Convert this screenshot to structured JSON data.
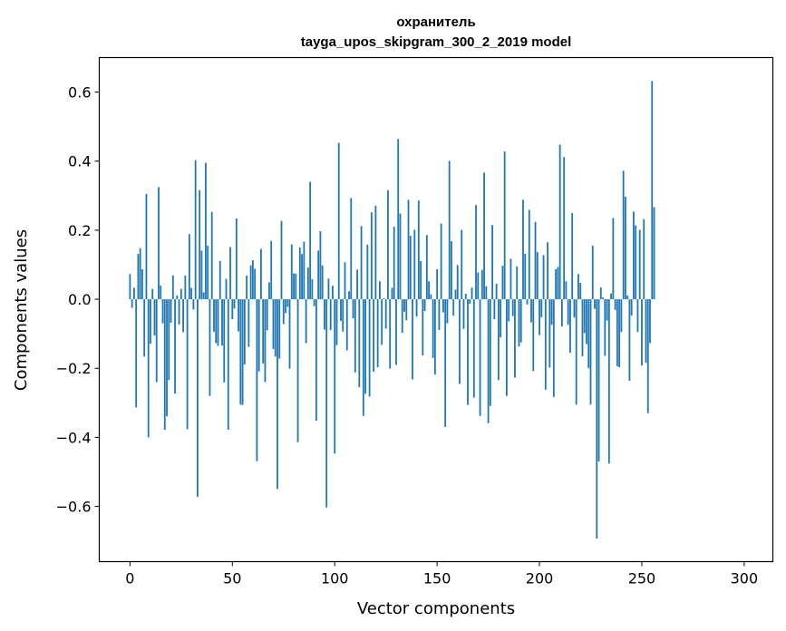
{
  "chart_data": {
    "type": "bar",
    "title_line1": "охранитель",
    "title_line2": "tayga_upos_skipgram_300_2_2019 model",
    "xlabel": "Vector components",
    "ylabel": "Components values",
    "xlim": [
      -15,
      314
    ],
    "ylim": [
      -0.76,
      0.7
    ],
    "xticks": [
      0,
      50,
      100,
      150,
      200,
      250,
      300
    ],
    "xtick_labels": [
      "0",
      "50",
      "100",
      "150",
      "200",
      "250",
      "300"
    ],
    "yticks": [
      -0.6,
      -0.4,
      -0.2,
      0.0,
      0.2,
      0.4,
      0.6
    ],
    "ytick_labels": [
      "−0.6",
      "−0.4",
      "−0.2",
      "0.0",
      "0.2",
      "0.4",
      "0.6"
    ],
    "bar_color": "#1f77b4",
    "values": [
      0.073,
      -0.025,
      0.033,
      -0.313,
      0.131,
      0.148,
      0.087,
      -0.166,
      0.305,
      -0.4,
      -0.129,
      0.03,
      -0.105,
      -0.24,
      0.325,
      0.04,
      -0.07,
      -0.378,
      -0.339,
      -0.234,
      -0.068,
      0.069,
      -0.273,
      0.011,
      -0.073,
      0.03,
      -0.095,
      0.069,
      -0.376,
      0.189,
      0.033,
      -0.03,
      0.403,
      -0.572,
      0.316,
      0.141,
      0.02,
      0.395,
      0.155,
      -0.28,
      0.253,
      -0.094,
      -0.127,
      -0.135,
      0.111,
      -0.134,
      -0.241,
      0.059,
      -0.378,
      0.151,
      -0.058,
      -0.027,
      0.234,
      -0.093,
      -0.305,
      -0.306,
      -0.189,
      0.069,
      -0.138,
      0.098,
      0.113,
      0.088,
      -0.469,
      -0.209,
      0.146,
      -0.186,
      -0.24,
      -0.09,
      0.049,
      0.169,
      -0.144,
      -0.166,
      -0.55,
      -0.172,
      0.227,
      -0.072,
      -0.04,
      -0.022,
      -0.201,
      0.159,
      0.075,
      0.074,
      -0.414,
      0.15,
      0.131,
      0.167,
      -0.127,
      0.092,
      0.34,
      0.058,
      -0.02,
      -0.352,
      0.141,
      0.197,
      0.098,
      -0.088,
      -0.603,
      0.06,
      -0.089,
      0.039,
      -0.447,
      -0.133,
      0.453,
      -0.063,
      -0.094,
      0.107,
      -0.148,
      0.023,
      0.293,
      -0.055,
      -0.212,
      0.086,
      -0.255,
      0.212,
      -0.338,
      -0.274,
      0.158,
      -0.282,
      0.252,
      -0.21,
      0.271,
      -0.197,
      0.052,
      -0.132,
      0.003,
      -0.085,
      0.316,
      -0.201,
      0.033,
      0.21,
      -0.19,
      0.464,
      0.248,
      -0.097,
      -0.036,
      -0.061,
      0.288,
      0.184,
      -0.232,
      0.201,
      -0.05,
      0.286,
      0.111,
      -0.163,
      -0.034,
      0.186,
      0.052,
      0.014,
      -0.17,
      -0.218,
      0.087,
      -0.089,
      0.219,
      -0.038,
      -0.37,
      -0.07,
      0.401,
      0.168,
      -0.048,
      0.028,
      0.099,
      -0.245,
      0.201,
      -0.086,
      0.016,
      -0.306,
      -0.013,
      0.034,
      -0.285,
      0.273,
      0.078,
      -0.338,
      0.085,
      0.367,
      0.038,
      -0.359,
      -0.309,
      0.215,
      -0.058,
      0.045,
      -0.234,
      -0.11,
      0.097,
      0.428,
      -0.28,
      -0.064,
      0.117,
      -0.049,
      -0.227,
      0.095,
      -0.137,
      -0.125,
      0.288,
      0.132,
      -0.015,
      0.259,
      -0.067,
      -0.208,
      0.224,
      0.137,
      -0.104,
      -0.052,
      0.128,
      -0.262,
      0.165,
      -0.198,
      -0.074,
      -0.283,
      0.087,
      0.093,
      0.448,
      -0.079,
      0.412,
      0.052,
      -0.074,
      -0.155,
      0.25,
      -0.053,
      -0.305,
      0.073,
      0.047,
      -0.165,
      -0.098,
      -0.13,
      -0.2,
      -0.305,
      0.155,
      -0.028,
      -0.693,
      -0.47,
      0.034,
      0.005,
      -0.164,
      -0.062,
      -0.476,
      0.017,
      0.235,
      -0.031,
      -0.194,
      -0.197,
      -0.095,
      0.372,
      0.297,
      0.011,
      -0.236,
      -0.047,
      0.254,
      0.214,
      -0.095,
      0.201,
      -0.192,
      0.232,
      -0.184,
      -0.33,
      -0.127,
      0.632,
      0.267
    ]
  }
}
